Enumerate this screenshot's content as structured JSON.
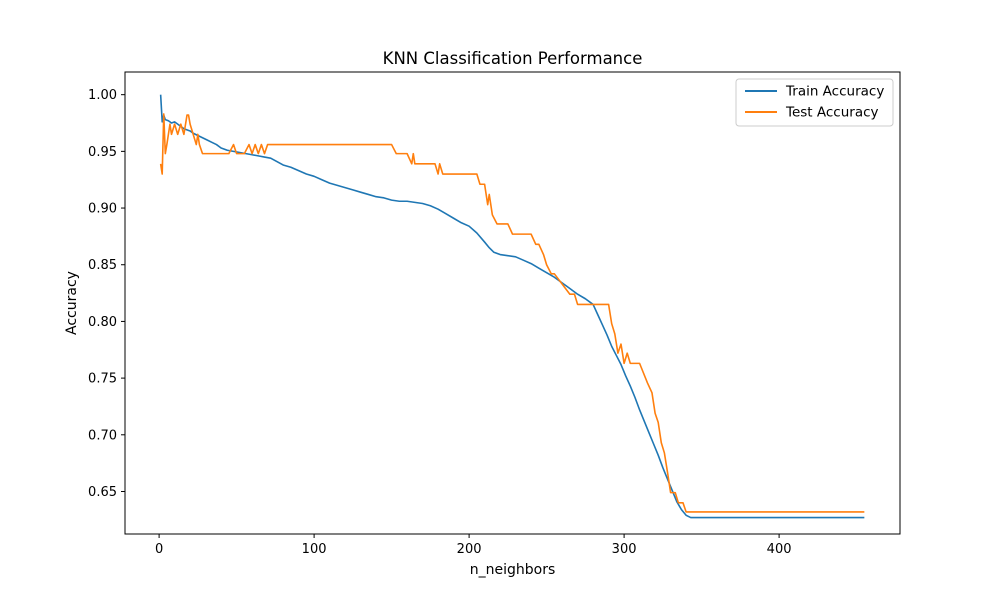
{
  "chart_data": {
    "type": "line",
    "title": "KNN Classification Performance",
    "xlabel": "n_neighbors",
    "ylabel": "Accuracy",
    "xlim": [
      -22,
      478
    ],
    "ylim": [
      0.6125,
      1.02
    ],
    "xticks": [
      0,
      100,
      200,
      300,
      400
    ],
    "xtick_labels": [
      "0",
      "100",
      "200",
      "300",
      "400"
    ],
    "yticks": [
      0.65,
      0.7,
      0.75,
      0.8,
      0.85,
      0.9,
      0.95,
      1.0
    ],
    "ytick_labels": [
      "0.65",
      "0.70",
      "0.75",
      "0.80",
      "0.85",
      "0.90",
      "0.95",
      "1.00"
    ],
    "grid": false,
    "legend": "upper-right",
    "series": [
      {
        "name": "Train Accuracy",
        "color": "#1f77b4",
        "x": [
          1,
          2,
          3,
          4,
          6,
          8,
          10,
          12,
          14,
          16,
          18,
          20,
          22,
          25,
          28,
          31,
          34,
          37,
          40,
          44,
          48,
          52,
          56,
          60,
          64,
          68,
          72,
          76,
          80,
          85,
          90,
          95,
          100,
          105,
          110,
          115,
          120,
          125,
          130,
          135,
          140,
          145,
          150,
          155,
          160,
          165,
          170,
          175,
          180,
          185,
          190,
          195,
          200,
          205,
          210,
          213,
          216,
          220,
          225,
          230,
          235,
          240,
          245,
          250,
          255,
          260,
          265,
          270,
          275,
          280,
          283,
          286,
          289,
          292,
          295,
          298,
          301,
          304,
          307,
          310,
          313,
          316,
          319,
          322,
          325,
          328,
          331,
          334,
          337,
          340,
          343,
          350,
          400,
          455
        ],
        "y": [
          1.0,
          0.976,
          0.982,
          0.978,
          0.977,
          0.975,
          0.976,
          0.974,
          0.972,
          0.97,
          0.969,
          0.968,
          0.966,
          0.964,
          0.962,
          0.96,
          0.958,
          0.956,
          0.953,
          0.951,
          0.95,
          0.949,
          0.948,
          0.947,
          0.946,
          0.945,
          0.944,
          0.941,
          0.938,
          0.936,
          0.933,
          0.93,
          0.928,
          0.925,
          0.922,
          0.92,
          0.918,
          0.916,
          0.914,
          0.912,
          0.91,
          0.909,
          0.907,
          0.906,
          0.906,
          0.905,
          0.904,
          0.902,
          0.899,
          0.895,
          0.891,
          0.887,
          0.884,
          0.878,
          0.87,
          0.865,
          0.861,
          0.859,
          0.858,
          0.857,
          0.854,
          0.851,
          0.847,
          0.843,
          0.839,
          0.834,
          0.829,
          0.824,
          0.82,
          0.815,
          0.806,
          0.797,
          0.788,
          0.778,
          0.77,
          0.762,
          0.752,
          0.743,
          0.733,
          0.722,
          0.712,
          0.702,
          0.692,
          0.682,
          0.671,
          0.661,
          0.651,
          0.641,
          0.634,
          0.629,
          0.627,
          0.627,
          0.627,
          0.627
        ]
      },
      {
        "name": "Test Accuracy",
        "color": "#ff7f0e",
        "x": [
          1,
          2,
          3,
          4,
          5,
          6,
          7,
          8,
          10,
          12,
          14,
          16,
          18,
          19,
          20,
          22,
          24,
          25,
          26,
          28,
          30,
          32,
          35,
          40,
          45,
          48,
          50,
          52,
          55,
          58,
          60,
          62,
          64,
          66,
          68,
          70,
          72,
          75,
          80,
          100,
          120,
          140,
          150,
          153,
          155,
          160,
          163,
          164,
          165,
          167,
          170,
          175,
          178,
          180,
          181,
          183,
          185,
          200,
          205,
          207,
          210,
          212,
          213,
          215,
          218,
          220,
          225,
          228,
          230,
          235,
          240,
          243,
          245,
          248,
          250,
          253,
          255,
          260,
          265,
          268,
          270,
          275,
          280,
          290,
          292,
          294,
          296,
          298,
          300,
          302,
          304,
          306,
          310,
          315,
          318,
          320,
          322,
          324,
          326,
          328,
          330,
          333,
          335,
          338,
          340,
          380,
          455
        ],
        "y": [
          0.939,
          0.93,
          0.983,
          0.948,
          0.956,
          0.965,
          0.974,
          0.965,
          0.974,
          0.965,
          0.974,
          0.965,
          0.982,
          0.982,
          0.974,
          0.965,
          0.956,
          0.965,
          0.956,
          0.948,
          0.948,
          0.948,
          0.948,
          0.948,
          0.948,
          0.956,
          0.948,
          0.948,
          0.948,
          0.956,
          0.948,
          0.956,
          0.948,
          0.956,
          0.948,
          0.956,
          0.956,
          0.956,
          0.956,
          0.956,
          0.956,
          0.956,
          0.956,
          0.948,
          0.948,
          0.948,
          0.939,
          0.948,
          0.939,
          0.939,
          0.939,
          0.939,
          0.939,
          0.93,
          0.939,
          0.93,
          0.93,
          0.93,
          0.93,
          0.921,
          0.921,
          0.903,
          0.912,
          0.894,
          0.886,
          0.886,
          0.886,
          0.877,
          0.877,
          0.877,
          0.877,
          0.868,
          0.868,
          0.859,
          0.85,
          0.842,
          0.842,
          0.833,
          0.824,
          0.824,
          0.815,
          0.815,
          0.815,
          0.815,
          0.798,
          0.789,
          0.772,
          0.78,
          0.763,
          0.772,
          0.763,
          0.763,
          0.763,
          0.746,
          0.737,
          0.719,
          0.711,
          0.693,
          0.684,
          0.667,
          0.649,
          0.649,
          0.64,
          0.64,
          0.632,
          0.632,
          0.632
        ]
      }
    ]
  }
}
